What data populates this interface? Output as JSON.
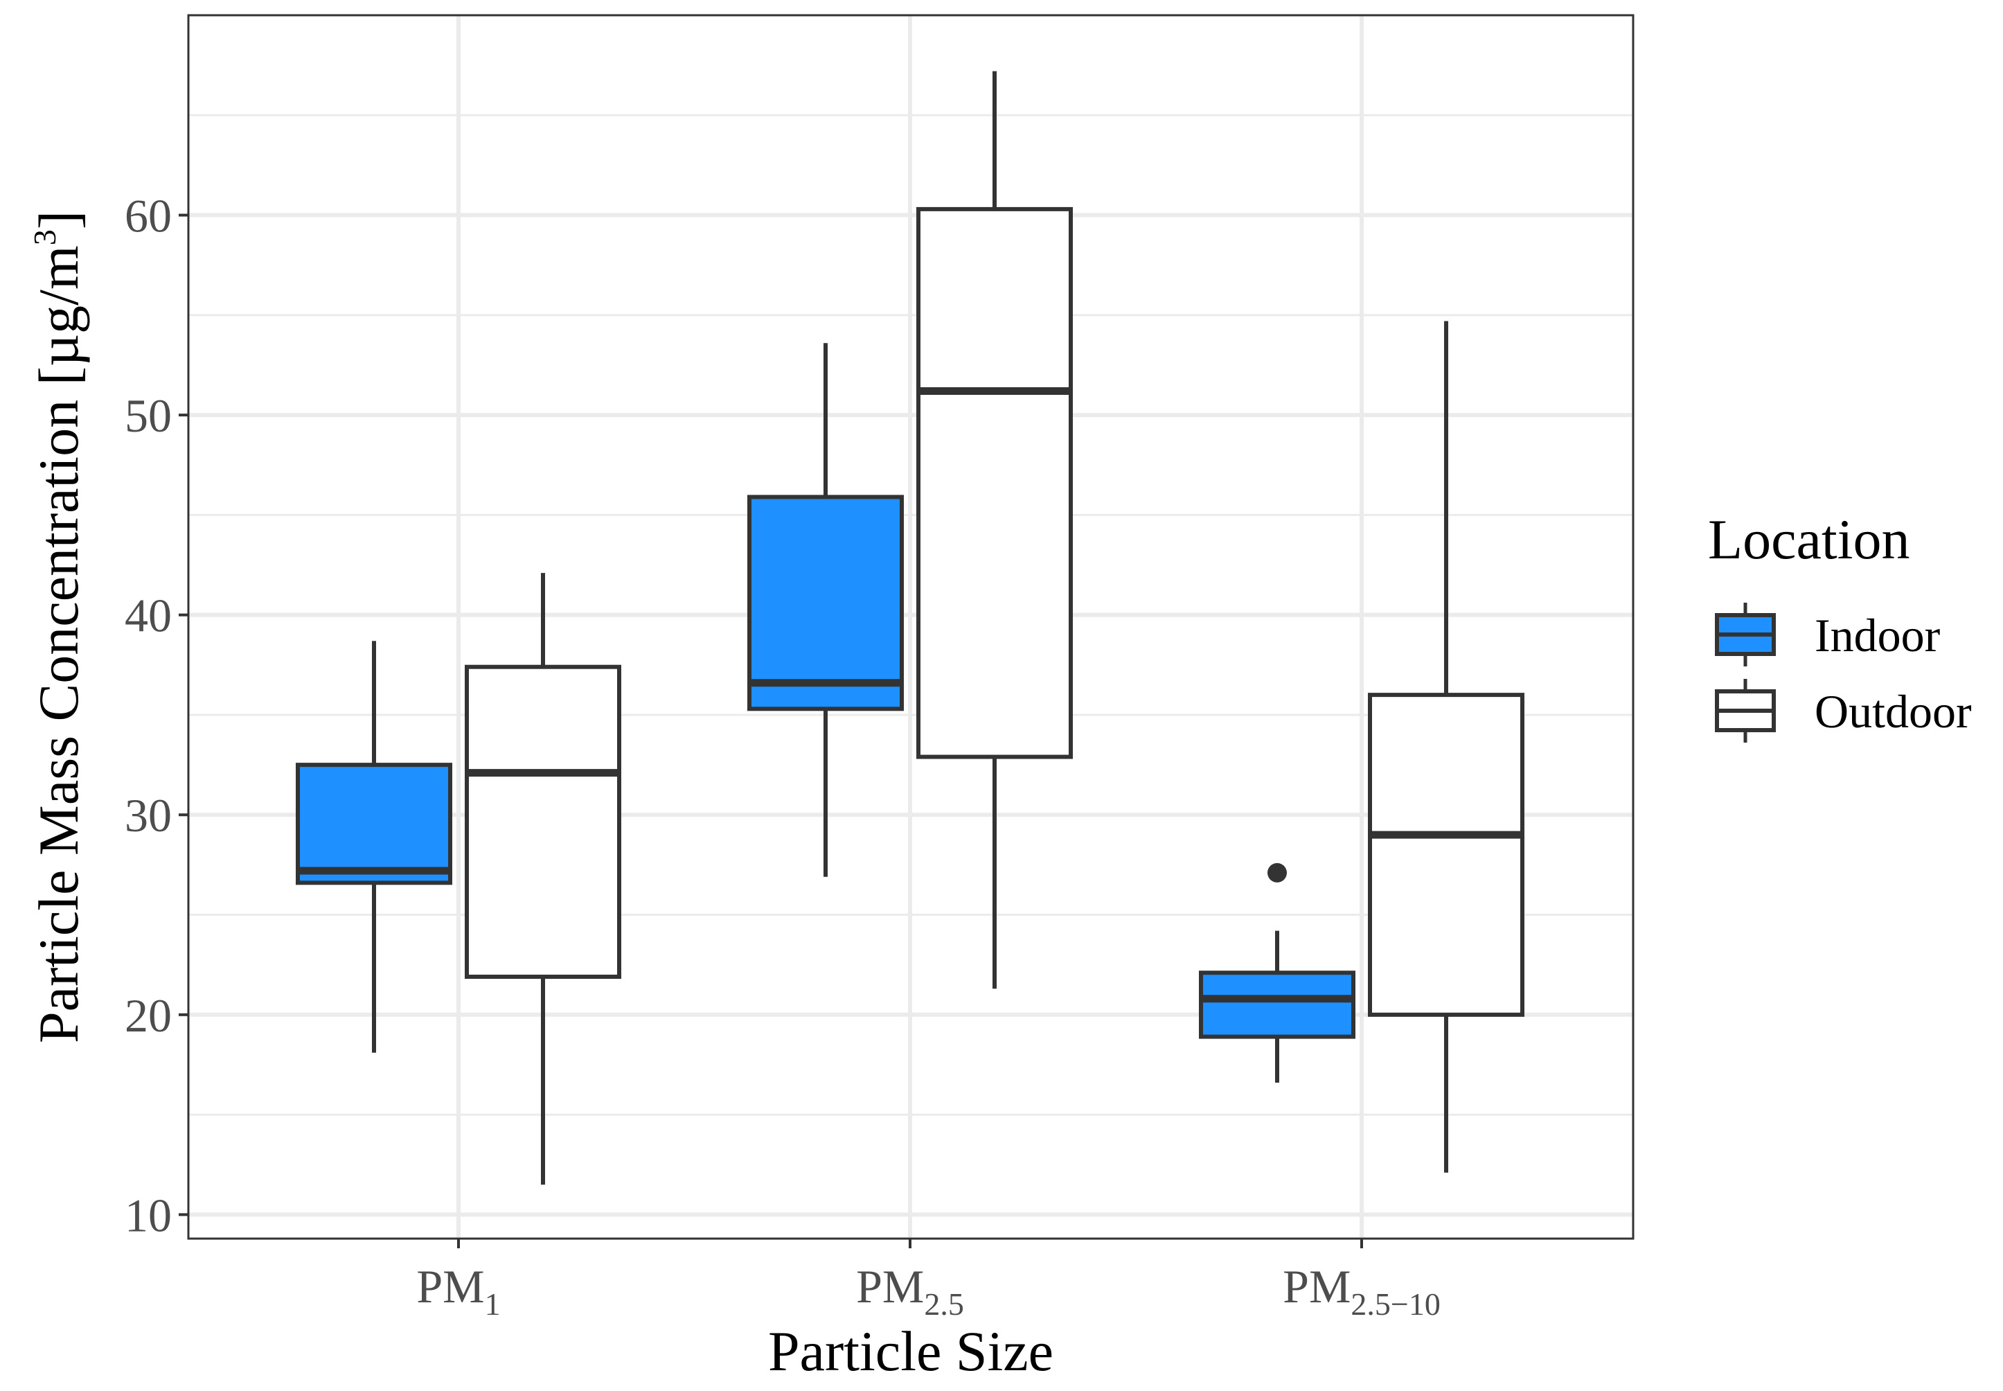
{
  "chart_data": {
    "type": "boxplot",
    "xlabel": "Particle Size",
    "ylabel": "Particle Mass Concentration [µg/m³]",
    "ylabel_parts": {
      "main": "Particle Mass Concentration [µg/m",
      "sup": "3",
      "end": "]"
    },
    "ylim": [
      8.8,
      70
    ],
    "y_ticks": [
      10,
      20,
      30,
      40,
      50,
      60
    ],
    "y_minor_ticks": [
      15,
      25,
      35,
      45,
      55,
      65
    ],
    "grid": true,
    "categories": [
      {
        "label": "PM₁",
        "main": "PM",
        "sub": "1"
      },
      {
        "label": "PM₂.₅",
        "main": "PM",
        "sub": "2.5"
      },
      {
        "label": "PM₂.₅₋₁₀",
        "main": "PM",
        "sub": "2.5−10"
      }
    ],
    "legend": {
      "title": "Location",
      "position": "right"
    },
    "series": [
      {
        "name": "Indoor",
        "fill": "#1e90ff",
        "boxes": [
          {
            "min": 18.1,
            "q1": 26.6,
            "median": 27.2,
            "q3": 32.5,
            "max": 38.7,
            "outliers": []
          },
          {
            "min": 26.9,
            "q1": 35.3,
            "median": 36.6,
            "q3": 45.9,
            "max": 53.6,
            "outliers": []
          },
          {
            "min": 16.6,
            "q1": 18.9,
            "median": 20.8,
            "q3": 22.1,
            "max": 24.2,
            "outliers": [
              27.1
            ]
          }
        ]
      },
      {
        "name": "Outdoor",
        "fill": "#ffffff",
        "boxes": [
          {
            "min": 11.5,
            "q1": 21.9,
            "median": 32.1,
            "q3": 37.4,
            "max": 42.1,
            "outliers": []
          },
          {
            "min": 21.3,
            "q1": 32.9,
            "median": 51.2,
            "q3": 60.3,
            "max": 67.2,
            "outliers": []
          },
          {
            "min": 12.1,
            "q1": 20.0,
            "median": 29.0,
            "q3": 36.0,
            "max": 54.7,
            "outliers": []
          }
        ]
      }
    ]
  }
}
